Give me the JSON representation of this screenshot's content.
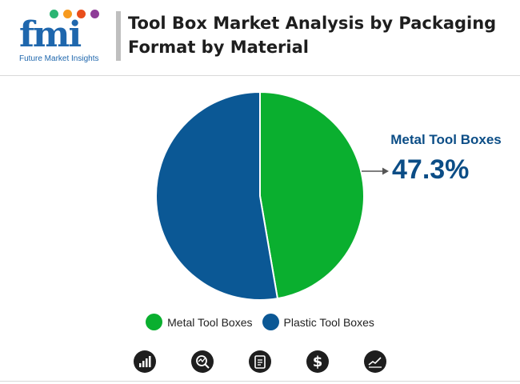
{
  "brand": {
    "logo_text": "fmi",
    "logo_subtitle": "Future Market Insights",
    "dot_colors": [
      "#2bb573",
      "#f79a1e",
      "#e94e1b",
      "#8e3c97"
    ],
    "logo_color": "#1f67ad"
  },
  "header": {
    "title": "Tool Box Market Analysis by Packaging Format by Material"
  },
  "chart_data": {
    "type": "pie",
    "title": "Tool Box Market Analysis by Packaging Format by Material",
    "slices": [
      {
        "label": "Metal Tool Boxes",
        "value": 47.3,
        "color": "#0aaf2f"
      },
      {
        "label": "Plastic Tool Boxes",
        "value": 52.7,
        "color": "#0b5895"
      }
    ],
    "start_angle_deg": 0,
    "direction": "clockwise",
    "callout": {
      "label": "Metal Tool Boxes",
      "value_text": "47.3%"
    },
    "legend_position": "bottom"
  },
  "footer_icons": [
    "bar-chart-icon",
    "magnifier-chart-icon",
    "document-icon",
    "dollar-icon",
    "trend-chart-icon"
  ]
}
